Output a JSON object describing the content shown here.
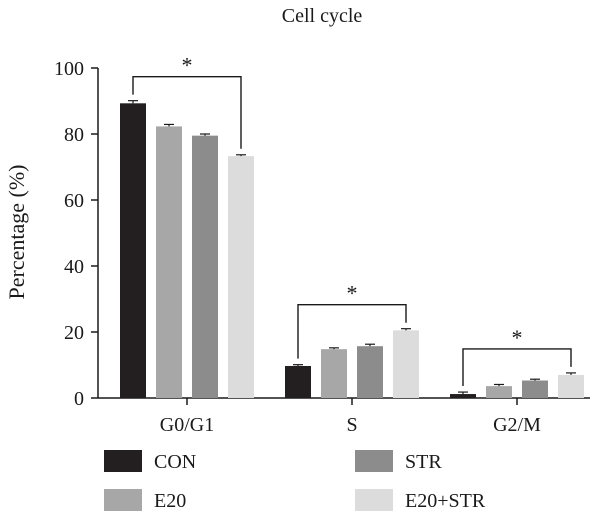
{
  "chart_data": {
    "type": "bar",
    "title": "Cell cycle",
    "xlabel": "",
    "ylabel": "Percentage (%)",
    "ylim": [
      0,
      100
    ],
    "yticks": [
      0,
      20,
      40,
      60,
      80,
      100
    ],
    "categories": [
      "G0/G1",
      "S",
      "G2/M"
    ],
    "series": [
      {
        "name": "CON",
        "color": "#231f20",
        "values": [
          89.3,
          9.7,
          1.2
        ],
        "errors": [
          0.8,
          0.4,
          0.6
        ]
      },
      {
        "name": "E20",
        "color": "#a7a7a7",
        "values": [
          82.3,
          14.8,
          3.6
        ],
        "errors": [
          0.6,
          0.4,
          0.5
        ]
      },
      {
        "name": "STR",
        "color": "#8c8c8c",
        "values": [
          79.5,
          15.7,
          5.3
        ],
        "errors": [
          0.5,
          0.6,
          0.4
        ]
      },
      {
        "name": "E20+STR",
        "color": "#dcdcdc",
        "values": [
          73.3,
          20.5,
          7.0
        ],
        "errors": [
          0.4,
          0.5,
          0.6
        ]
      }
    ],
    "significance": [
      {
        "category": "G0/G1",
        "label": "*"
      },
      {
        "category": "S",
        "label": "*"
      },
      {
        "category": "G2/M",
        "label": "*"
      }
    ],
    "grid": false,
    "legend_position": "bottom"
  }
}
